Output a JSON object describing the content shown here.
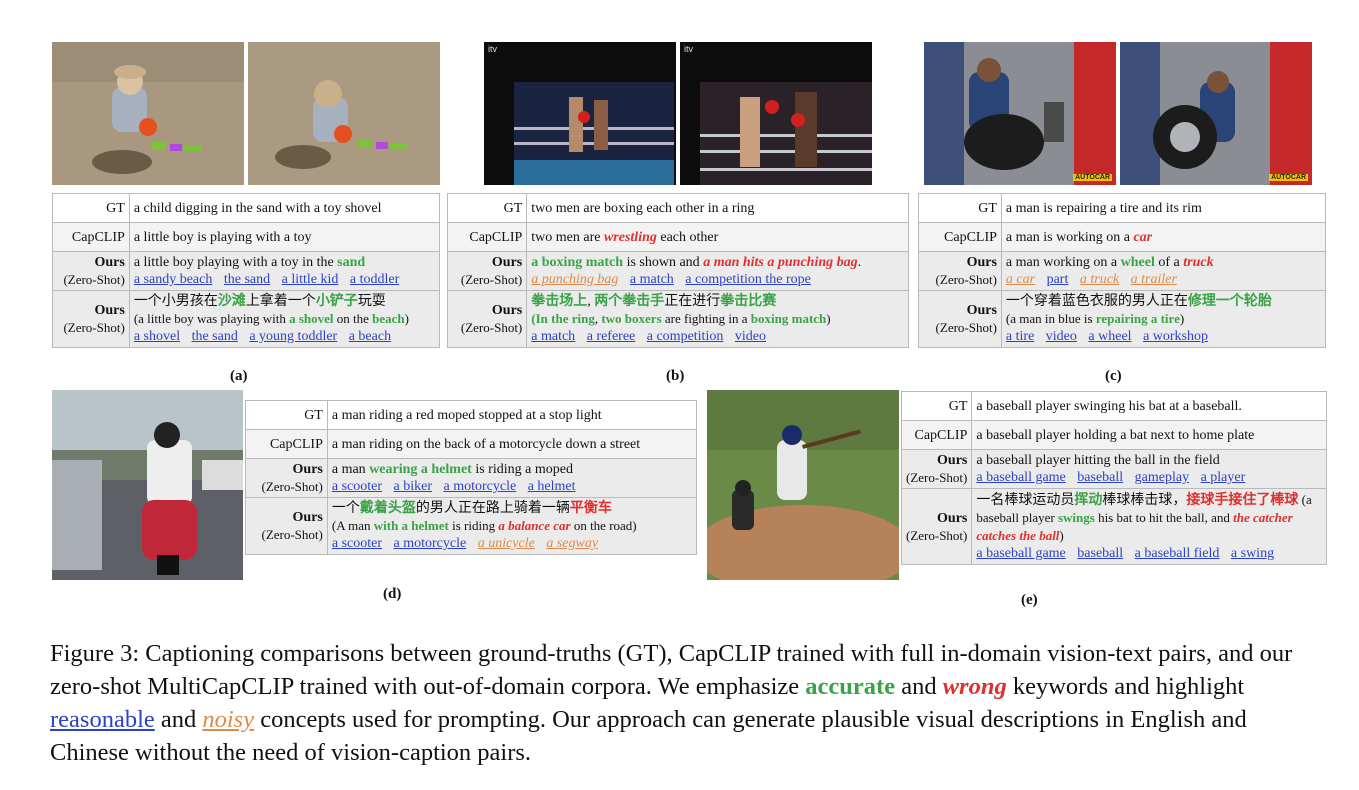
{
  "labels": {
    "gt": "GT",
    "capclip": "CapCLIP",
    "ours": "Ours",
    "zero_shot": "(Zero-Shot)"
  },
  "panels": {
    "a": {
      "label": "(a)",
      "gt": "a child digging in the sand with a toy shovel",
      "capclip": "a little boy is playing with a toy",
      "en_pre": "a little boy playing with a toy in the ",
      "en_g1": "sand",
      "en_kw": [
        "a sandy beach",
        "the sand",
        "a little kid",
        "a toddler"
      ],
      "zh_1": "一个小男孩在",
      "zh_g1": "沙滩",
      "zh_2": "上拿着一个",
      "zh_g2": "小铲子",
      "zh_3": "玩耍",
      "tr_1": "(a little boy was playing with ",
      "tr_g1": "a shovel",
      "tr_2": " on the ",
      "tr_g2": "beach",
      "tr_3": ")",
      "zh_kw": [
        "a shovel",
        "the sand",
        "a young toddler",
        "a beach"
      ]
    },
    "b": {
      "label": "(b)",
      "logo": "itv",
      "gt": "two men are boxing each other in a ring",
      "capclip_1": "two men are ",
      "capclip_r": "wrestling",
      "capclip_2": " each other",
      "en_g1": "a boxing match",
      "en_mid": " is shown and ",
      "en_r1": "a man hits a punching bag",
      "en_end": ".",
      "en_kw_noisy": "a punching bag",
      "en_kw": [
        "a match",
        "a competition  the rope"
      ],
      "zh_g1": "拳击场上",
      "zh_sep": ", ",
      "zh_g2": "两个拳击手",
      "zh_mid": "正在进行",
      "zh_g3": "拳击比赛",
      "tr_g1": "(In the ring",
      "tr_sep": ", ",
      "tr_g2": "two boxers",
      "tr_mid": " are fighting in a ",
      "tr_g3": "boxing match",
      "tr_end": ")",
      "zh_kw": [
        "a match",
        "a referee",
        "a competition",
        "video"
      ]
    },
    "c": {
      "label": "(c)",
      "badge": "AUTOCAR",
      "gt": "a man is repairing a tire and its rim",
      "capclip_1": "a man is working on a ",
      "capclip_r": "car",
      "en_1": "a man working on a ",
      "en_g1": "wheel",
      "en_2": " of a ",
      "en_r1": "truck",
      "en_kw": [
        {
          "t": "a car",
          "noisy": true
        },
        {
          "t": "part",
          "noisy": false
        },
        {
          "t": "a truck",
          "noisy": true
        },
        {
          "t": "a trailer",
          "noisy": true
        }
      ],
      "zh_1": "一个穿着蓝色衣服的男人正在",
      "zh_g1": "修理一个轮胎",
      "tr_1": "(a man in blue is ",
      "tr_g1": "repairing a tire",
      "tr_2": ")",
      "zh_kw": [
        "a tire",
        "video",
        "a wheel",
        "a workshop"
      ]
    },
    "d": {
      "label": "(d)",
      "gt": "a man riding a red moped stopped at a stop light",
      "capclip": "a man riding on the back of a motorcycle down a street",
      "en_1": "a man ",
      "en_g1": "wearing a helmet",
      "en_2": " is riding a moped",
      "en_kw": [
        "a scooter",
        "a biker",
        "a motorcycle",
        "a helmet"
      ],
      "zh_1": "一个",
      "zh_g1": "戴着头盔",
      "zh_2": "的男人正在路上骑着一辆",
      "zh_r1": "平衡车",
      "tr_1": "(A man ",
      "tr_g1": "with a helmet",
      "tr_2": " is riding ",
      "tr_r1": "a balance car",
      "tr_3": " on the road)",
      "zh_kw": [
        {
          "t": "a scooter",
          "noisy": false
        },
        {
          "t": "a motorcycle",
          "noisy": false
        },
        {
          "t": "a unicycle",
          "noisy": true
        },
        {
          "t": "a segway",
          "noisy": true
        }
      ]
    },
    "e": {
      "label": "(e)",
      "gt": "a baseball player swinging his bat at a baseball.",
      "capclip": "a baseball player holding a bat next to home plate",
      "en": "a baseball player hitting the ball in the field",
      "en_kw": [
        "a baseball game",
        "baseball",
        "gameplay",
        "a player"
      ],
      "zh_1": "一名棒球运动员",
      "zh_g1": "挥动",
      "zh_2": "棒球棒击球，",
      "zh_r1": "接球手接住了棒球",
      "tr_1": " (a baseball player ",
      "tr_g1": "swings",
      "tr_2": " his bat to hit the ball, and ",
      "tr_r1": "the catcher catches the ball",
      "tr_3": ")",
      "zh_kw": [
        "a baseball game",
        "baseball",
        "a baseball field",
        "a swing"
      ]
    }
  },
  "caption": {
    "p1": "Figure 3: Captioning comparisons between ground-truths (GT), CapCLIP trained with full in-domain vision-text pairs, and our zero-shot MultiCapCLIP trained with out-of-domain corpora. We emphasize ",
    "accurate": "accurate",
    "and1": " and ",
    "wrong": "wrong",
    "p2": " keywords and highlight ",
    "reasonable": "reasonable",
    "and2": " and ",
    "noisy": "noisy",
    "p3": " concepts used for prompting. Our approach can generate plausible visual descriptions in English and Chinese without the need of vision-caption pairs."
  },
  "colors": {
    "accurate": "#3aa347",
    "wrong": "#e02f2f",
    "reasonable": "#2c41c9",
    "noisy": "#e0894a"
  }
}
